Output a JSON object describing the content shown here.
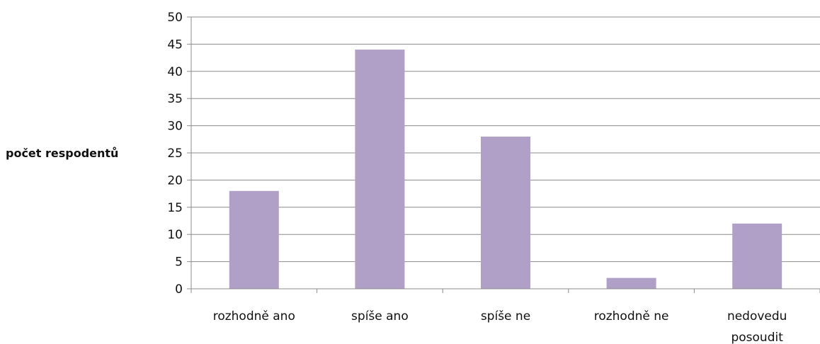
{
  "chart_data": {
    "type": "bar",
    "title": "",
    "xlabel": "",
    "ylabel": "počet respodentů",
    "categories": [
      [
        "rozhodně ano"
      ],
      [
        "spíše ano"
      ],
      [
        "spíše ne"
      ],
      [
        "rozhodně ne"
      ],
      [
        "nedovedu",
        "posoudit"
      ]
    ],
    "values": [
      18,
      44,
      28,
      2,
      12
    ],
    "ylim": [
      0,
      50
    ],
    "yticks": [
      "0",
      "5",
      "10",
      "15",
      "20",
      "25",
      "30",
      "35",
      "40",
      "45",
      "50"
    ],
    "grid": true,
    "legend": "none",
    "bar_color": "#b0a0c8"
  }
}
